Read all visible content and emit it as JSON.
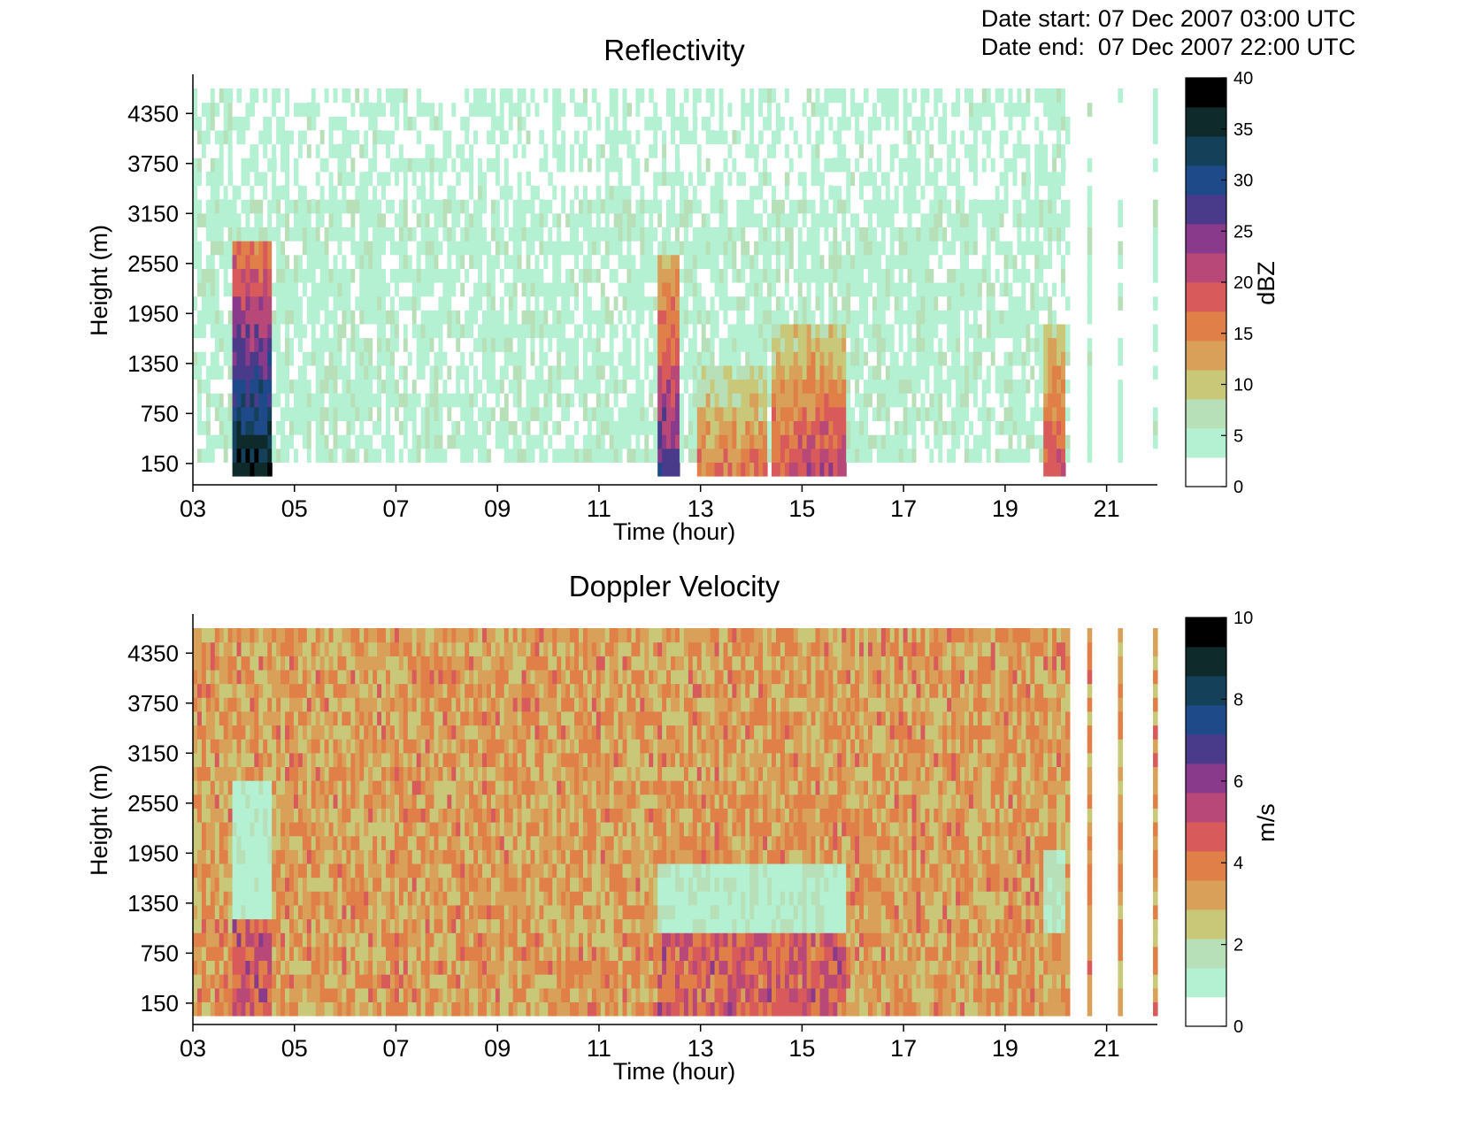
{
  "header": {
    "date_start": "Date start: 07 Dec 2007 03:00 UTC",
    "date_end": "Date end:  07 Dec 2007 22:00 UTC"
  },
  "chart_data": [
    {
      "type": "heatmap",
      "title": "Reflectivity",
      "xlabel": "Time (hour)",
      "ylabel": "Height (m)",
      "colorbar_label": "dBZ",
      "x_ticks": [
        "03",
        "05",
        "07",
        "09",
        "11",
        "13",
        "15",
        "17",
        "19",
        "21"
      ],
      "y_ticks": [
        "150",
        "750",
        "1350",
        "1950",
        "2550",
        "3150",
        "3750",
        "4350"
      ],
      "colorbar_ticks": [
        "0",
        "5",
        "10",
        "15",
        "20",
        "25",
        "30",
        "35",
        "40"
      ],
      "xlim": [
        3,
        22
      ],
      "ylim": [
        0,
        4650
      ],
      "clim": [
        0,
        40
      ],
      "background_level": 4,
      "data_gaps_hours": [
        [
          20.2,
          20.55
        ],
        [
          20.65,
          21.2
        ],
        [
          21.3,
          21.9
        ]
      ],
      "events": [
        {
          "t_start": 3.7,
          "t_end": 4.5,
          "top_m": 2700,
          "peak": 36
        },
        {
          "t_start": 12.1,
          "t_end": 12.55,
          "top_m": 2500,
          "peak": 27
        },
        {
          "t_start": 12.9,
          "t_end": 14.3,
          "top_m": 1200,
          "peak": 16
        },
        {
          "t_start": 14.4,
          "t_end": 14.8,
          "top_m": 1700,
          "peak": 19
        },
        {
          "t_start": 14.8,
          "t_end": 15.8,
          "top_m": 1700,
          "peak": 21
        },
        {
          "t_start": 19.7,
          "t_end": 20.15,
          "top_m": 1800,
          "peak": 20
        }
      ]
    },
    {
      "type": "heatmap",
      "title": "Doppler Velocity",
      "xlabel": "Time (hour)",
      "ylabel": "Height (m)",
      "colorbar_label": "m/s",
      "x_ticks": [
        "03",
        "05",
        "07",
        "09",
        "11",
        "13",
        "15",
        "17",
        "19",
        "21"
      ],
      "y_ticks": [
        "150",
        "750",
        "1350",
        "1950",
        "2550",
        "3150",
        "3750",
        "4350"
      ],
      "colorbar_ticks": [
        "0",
        "2",
        "4",
        "6",
        "8",
        "10"
      ],
      "xlim": [
        3,
        22
      ],
      "ylim": [
        0,
        4650
      ],
      "clim": [
        0,
        10
      ],
      "background_level": 3.3,
      "data_gaps_hours": [
        [
          20.2,
          20.55
        ],
        [
          20.65,
          21.2
        ],
        [
          21.3,
          21.9
        ]
      ],
      "events": [
        {
          "t_start": 3.7,
          "t_end": 4.5,
          "top_m": 2700,
          "peak": 1.2,
          "low_top_m": 1100,
          "low_peak": 6
        },
        {
          "t_start": 12.1,
          "t_end": 15.8,
          "top_m": 1700,
          "peak": 1.3,
          "low_top_m": 850,
          "low_peak": 5.8
        },
        {
          "t_start": 19.7,
          "t_end": 20.15,
          "top_m": 1900,
          "peak": 1.5,
          "low_top_m": 900,
          "low_peak": 4
        }
      ]
    }
  ],
  "colormap": [
    "#ffffff",
    "#b4f0d2",
    "#b8e0b8",
    "#c8c878",
    "#d8a058",
    "#e08048",
    "#d85a5a",
    "#b84878",
    "#8a3a8a",
    "#4a3a8a",
    "#1f4a8a",
    "#14405a",
    "#0f2a2a",
    "#000000"
  ]
}
